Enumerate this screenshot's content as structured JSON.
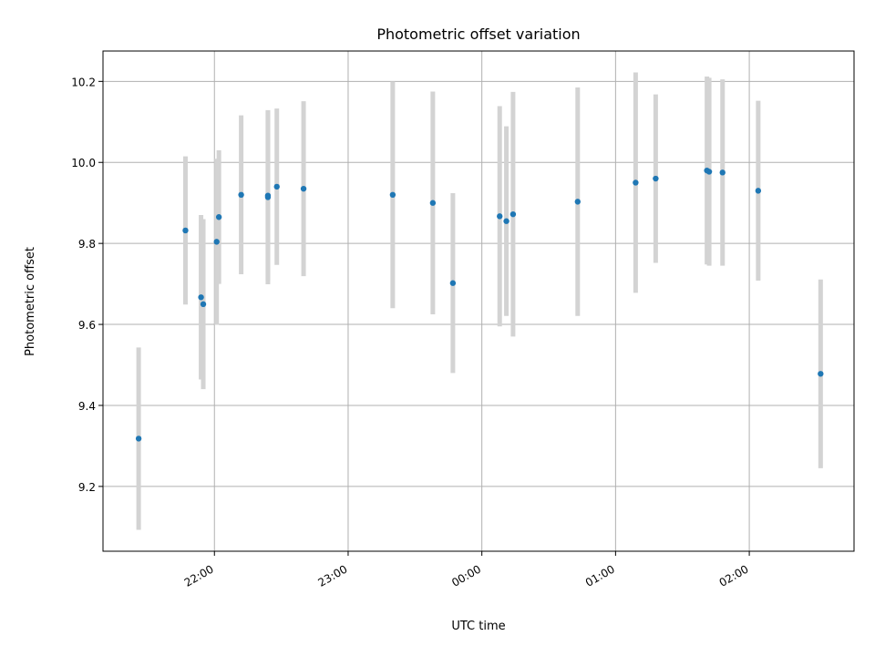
{
  "chart_data": {
    "type": "scatter",
    "title": "Photometric offset variation",
    "xlabel": "UTC time",
    "ylabel": "Photometric offset",
    "x_axis_type": "time",
    "x_tick_labels": [
      "22:00",
      "23:00",
      "00:00",
      "01:00",
      "02:00"
    ],
    "xlim": [
      "21:10",
      "02:47"
    ],
    "ylim": [
      9.04,
      10.275
    ],
    "y_ticks": [
      9.2,
      9.4,
      9.6,
      9.8,
      10.0,
      10.2
    ],
    "grid": true,
    "colors": {
      "points": "#1f77b4",
      "errorbars": "#d3d3d3"
    },
    "points": [
      {
        "time": "21:26",
        "value": 9.318,
        "err": 0.225
      },
      {
        "time": "21:47",
        "value": 9.832,
        "err": 0.183
      },
      {
        "time": "21:54",
        "value": 9.667,
        "err": 0.203
      },
      {
        "time": "21:55",
        "value": 9.65,
        "err": 0.21
      },
      {
        "time": "22:01",
        "value": 9.804,
        "err": 0.205
      },
      {
        "time": "22:02",
        "value": 9.865,
        "err": 0.165
      },
      {
        "time": "22:12",
        "value": 9.92,
        "err": 0.196
      },
      {
        "time": "22:24",
        "value": 9.918,
        "err": 0.21
      },
      {
        "time": "22:24",
        "value": 9.914,
        "err": 0.215
      },
      {
        "time": "22:28",
        "value": 9.94,
        "err": 0.193
      },
      {
        "time": "22:40",
        "value": 9.935,
        "err": 0.216
      },
      {
        "time": "23:20",
        "value": 9.92,
        "err": 0.28
      },
      {
        "time": "23:38",
        "value": 9.9,
        "err": 0.275
      },
      {
        "time": "23:47",
        "value": 9.702,
        "err": 0.222
      },
      {
        "time": "00:08",
        "value": 9.867,
        "err": 0.272
      },
      {
        "time": "00:11",
        "value": 9.855,
        "err": 0.234
      },
      {
        "time": "00:14",
        "value": 9.872,
        "err": 0.302
      },
      {
        "time": "00:43",
        "value": 9.903,
        "err": 0.282
      },
      {
        "time": "01:09",
        "value": 9.95,
        "err": 0.272
      },
      {
        "time": "01:18",
        "value": 9.96,
        "err": 0.208
      },
      {
        "time": "01:41",
        "value": 9.98,
        "err": 0.232
      },
      {
        "time": "01:42",
        "value": 9.977,
        "err": 0.232
      },
      {
        "time": "01:48",
        "value": 9.975,
        "err": 0.23
      },
      {
        "time": "02:04",
        "value": 9.93,
        "err": 0.222
      },
      {
        "time": "02:32",
        "value": 9.478,
        "err": 0.233
      }
    ]
  }
}
